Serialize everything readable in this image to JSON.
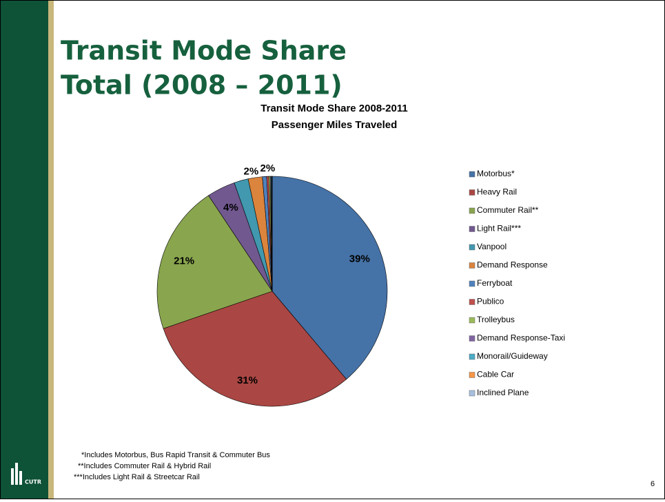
{
  "slide_title": [
    "Transit Mode Share",
    "Total (2008 – 2011)"
  ],
  "chart_data": {
    "type": "pie",
    "title": [
      "Transit Mode Share 2008-2011",
      "Passenger Miles Traveled"
    ],
    "categories": [
      "Motorbus*",
      "Heavy Rail",
      "Commuter Rail**",
      "Light Rail***",
      "Vanpool",
      "Demand Response",
      "Ferryboat",
      "Publico",
      "Trolleybus",
      "Demand Response-Taxi",
      "Monorail/Guideway",
      "Cable Car",
      "Inclined Plane"
    ],
    "values": [
      39,
      31,
      21,
      4,
      2,
      2,
      0.6,
      0.3,
      0.2,
      0.1,
      0.1,
      0.05,
      0.02
    ],
    "value_labels": [
      "39%",
      "31%",
      "21%",
      "4%",
      "2%",
      "2%",
      null,
      null,
      null,
      null,
      null,
      null,
      null
    ],
    "colors": [
      "#4572a7",
      "#aa4643",
      "#89a54e",
      "#71588f",
      "#4198af",
      "#db843d",
      "#4f81bd",
      "#c0504d",
      "#9bbb59",
      "#8064a2",
      "#4bacc6",
      "#f79646",
      "#a7c0de"
    ],
    "legend": "right"
  },
  "footnotes": [
    "*Includes Motorbus, Bus Rapid Transit & Commuter Bus",
    "**Includes Commuter Rail & Hybrid Rail",
    "***Includes Light Rail & Streetcar Rail"
  ],
  "logo_text": "CUTR",
  "page_number": "6"
}
